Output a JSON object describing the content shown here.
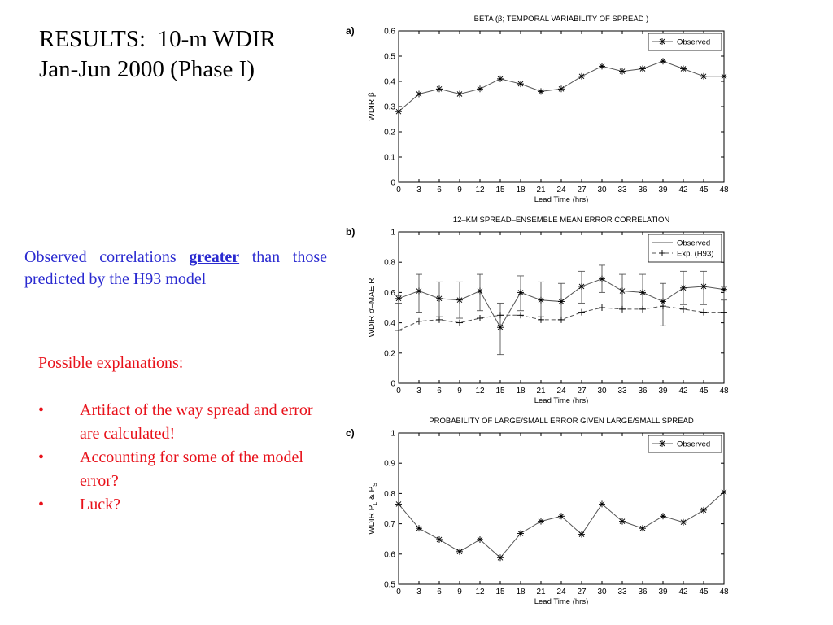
{
  "slide": {
    "title_lines": [
      "RESULTS:  10-m WDIR",
      "Jan-Jun 2000 (Phase I)"
    ],
    "note": {
      "before": "Observed correlations ",
      "emphasis": "greater",
      "after": " than those predicted by the H93 model"
    },
    "explanations": {
      "heading": "Possible explanations:",
      "bullet_symbol": "•",
      "items": [
        "Artifact of the way spread and error are calculated!",
        "Accounting for some of the model error?",
        "Luck?"
      ]
    },
    "colors": {
      "title": "#000000",
      "note": "#2a2ad0",
      "explanations": "#e8111a"
    }
  },
  "chart_data": [
    {
      "panel": "a)",
      "type": "line",
      "title": "BETA (β; TEMPORAL VARIABILITY OF SPREAD )",
      "xlabel": "Lead Time (hrs)",
      "ylabel": "WDIR  β",
      "x": [
        0,
        3,
        6,
        9,
        12,
        15,
        18,
        21,
        24,
        27,
        30,
        33,
        36,
        39,
        42,
        45,
        48
      ],
      "xlim": [
        0,
        48
      ],
      "ylim": [
        0,
        0.6
      ],
      "yticks": [
        0,
        0.1,
        0.2,
        0.3,
        0.4,
        0.5,
        0.6
      ],
      "legend_position": "top-right",
      "grid": false,
      "series": [
        {
          "name": "Observed",
          "style": "solid-star",
          "values": [
            0.28,
            0.35,
            0.37,
            0.35,
            0.37,
            0.41,
            0.39,
            0.36,
            0.37,
            0.42,
            0.46,
            0.44,
            0.45,
            0.48,
            0.45,
            0.42,
            0.42
          ]
        }
      ]
    },
    {
      "panel": "b)",
      "type": "line",
      "title": "12–KM SPREAD–ENSEMBLE MEAN ERROR CORRELATION",
      "xlabel": "Lead Time (hrs)",
      "ylabel": "WDIR  σ–MAE R",
      "x": [
        0,
        3,
        6,
        9,
        12,
        15,
        18,
        21,
        24,
        27,
        30,
        33,
        36,
        39,
        42,
        45,
        48
      ],
      "xlim": [
        0,
        48
      ],
      "ylim": [
        0,
        1
      ],
      "yticks": [
        0,
        0.2,
        0.4,
        0.6,
        0.8,
        1
      ],
      "legend_position": "top-right",
      "grid": false,
      "series": [
        {
          "name": "Observed",
          "style": "solid-star",
          "values": [
            0.56,
            0.61,
            0.56,
            0.55,
            0.61,
            0.37,
            0.6,
            0.55,
            0.54,
            0.64,
            0.69,
            0.61,
            0.6,
            0.54,
            0.63,
            0.64,
            0.62
          ],
          "error_bars": [
            [
              0.53,
              0.58
            ],
            [
              0.47,
              0.72
            ],
            [
              0.44,
              0.67
            ],
            [
              0.43,
              0.67
            ],
            [
              0.48,
              0.72
            ],
            [
              0.19,
              0.53
            ],
            [
              0.48,
              0.71
            ],
            [
              0.44,
              0.67
            ],
            [
              0.42,
              0.66
            ],
            [
              0.53,
              0.74
            ],
            [
              0.6,
              0.78
            ],
            [
              0.49,
              0.72
            ],
            [
              0.49,
              0.72
            ],
            [
              0.38,
              0.66
            ],
            [
              0.52,
              0.74
            ],
            [
              0.52,
              0.74
            ],
            [
              0.55,
              0.64
            ]
          ]
        },
        {
          "name": "Exp. (H93)",
          "style": "dashed-plus",
          "values": [
            0.35,
            0.41,
            0.42,
            0.4,
            0.43,
            0.45,
            0.45,
            0.42,
            0.42,
            0.47,
            0.5,
            0.49,
            0.49,
            0.51,
            0.49,
            0.47,
            0.47
          ]
        }
      ]
    },
    {
      "panel": "c)",
      "type": "line",
      "title": "PROBABILITY OF LARGE/SMALL ERROR GIVEN LARGE/SMALL SPREAD",
      "xlabel": "Lead Time (hrs)",
      "ylabel": "WDIR  P",
      "ylabel_subscripts": [
        "L",
        "S"
      ],
      "x": [
        0,
        3,
        6,
        9,
        12,
        15,
        18,
        21,
        24,
        27,
        30,
        33,
        36,
        39,
        42,
        45,
        48
      ],
      "xlim": [
        0,
        48
      ],
      "ylim": [
        0.5,
        1
      ],
      "yticks": [
        0.5,
        0.6,
        0.7,
        0.8,
        0.9,
        1
      ],
      "legend_position": "top-right",
      "grid": false,
      "series": [
        {
          "name": "Observed",
          "style": "solid-star",
          "values": [
            0.765,
            0.685,
            0.648,
            0.608,
            0.648,
            0.588,
            0.668,
            0.708,
            0.725,
            0.665,
            0.765,
            0.708,
            0.685,
            0.725,
            0.705,
            0.745,
            0.805
          ]
        }
      ]
    }
  ]
}
